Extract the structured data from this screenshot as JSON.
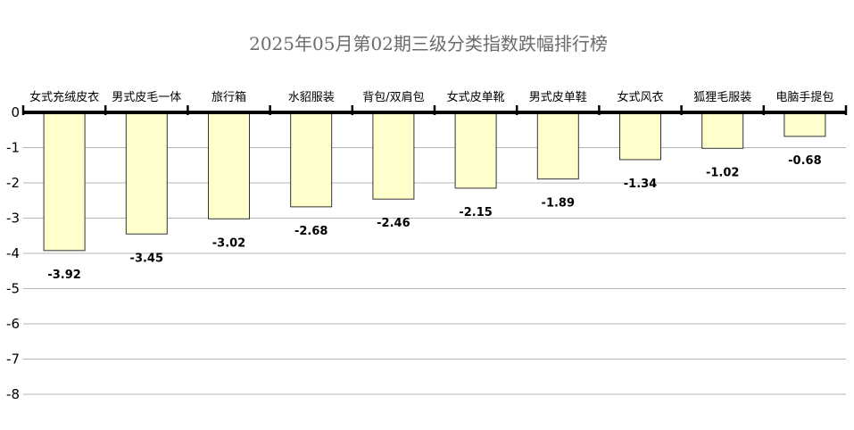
{
  "chart_data": {
    "type": "bar",
    "title": "2025年05月第02期三级分类指数跌幅排行榜",
    "categories": [
      "女式充绒皮衣",
      "男式皮毛一体",
      "旅行箱",
      "水貂服装",
      "背包/双肩包",
      "女式皮单靴",
      "男式皮单鞋",
      "女式风衣",
      "狐狸毛服装",
      "电脑手提包"
    ],
    "values": [
      -3.92,
      -3.45,
      -3.02,
      -2.68,
      -2.46,
      -2.15,
      -1.89,
      -1.34,
      -1.02,
      -0.68
    ],
    "value_labels": [
      "-3.92",
      "-3.45",
      "-3.02",
      "-2.68",
      "-2.46",
      "-2.15",
      "-1.89",
      "-1.34",
      "-1.02",
      "-0.68"
    ],
    "ylim": [
      -8,
      0
    ],
    "yticks": [
      0,
      -1,
      -2,
      -3,
      -4,
      -5,
      -6,
      -7,
      -8
    ],
    "ytick_labels": [
      "0",
      "-1",
      "-2",
      "-3",
      "-4",
      "-5",
      "-6",
      "-7",
      "-8"
    ],
    "xlabel": "",
    "ylabel": "",
    "grid": true,
    "category_axis_position": "top",
    "colors": {
      "bar_fill": "#ffffcc",
      "bar_stroke": "#333333",
      "grid": "#b4b4b4",
      "axis": "#000000",
      "title": "#6b6b6b"
    }
  }
}
